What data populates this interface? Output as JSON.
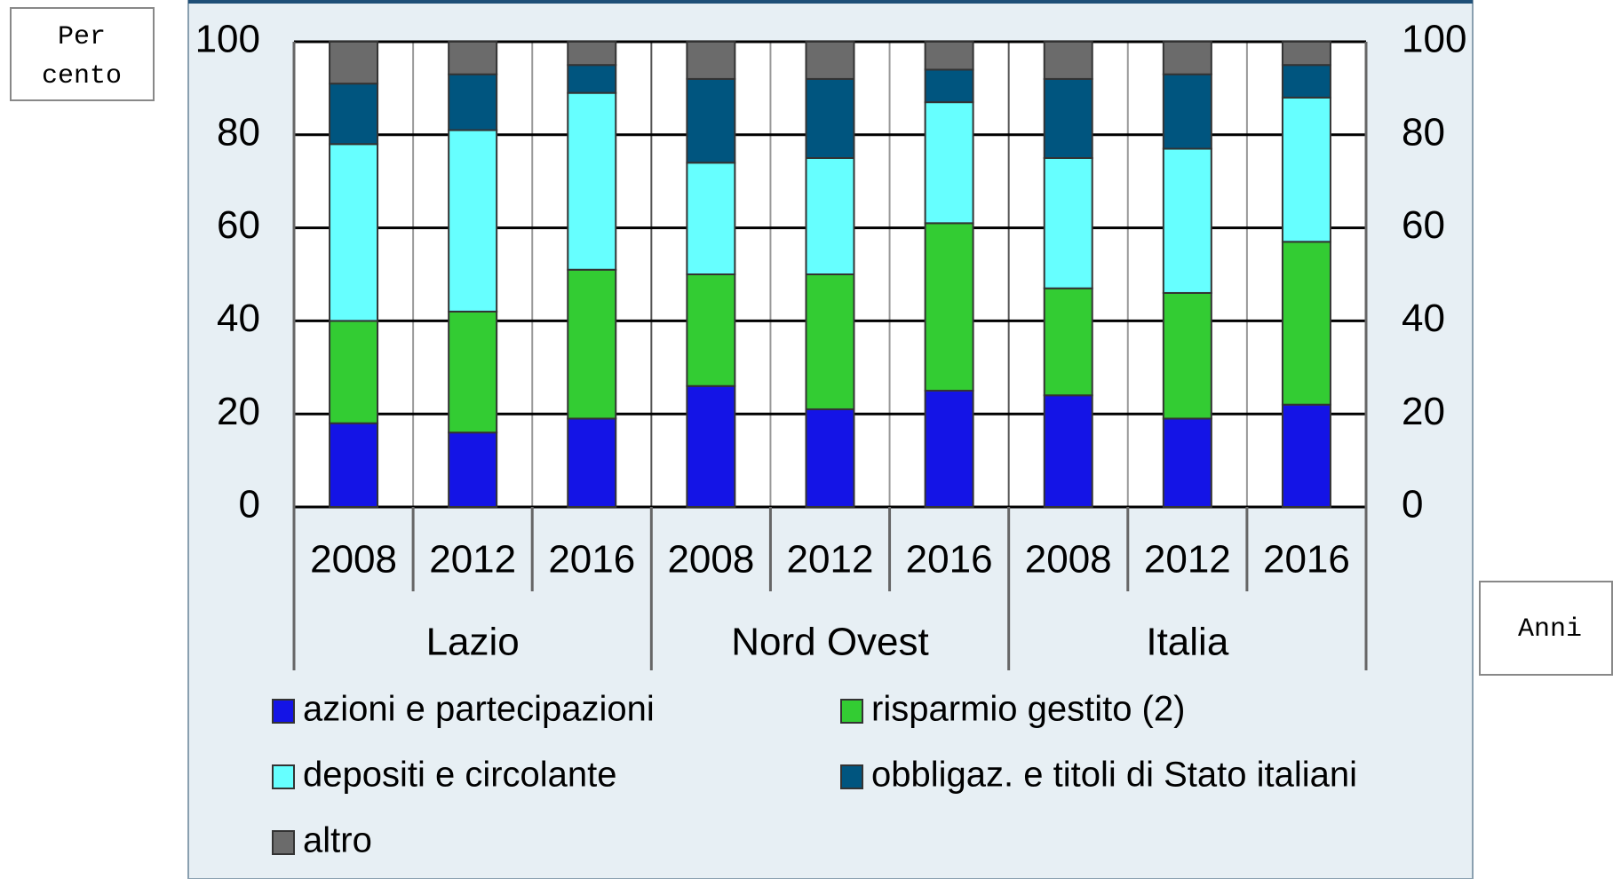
{
  "chart_data": {
    "type": "stacked_bar",
    "y_axis_label": "Per cento",
    "x_axis_label": "Anni",
    "categories": [
      "2008",
      "2012",
      "2016",
      "2008",
      "2012",
      "2016",
      "2008",
      "2012",
      "2016"
    ],
    "groups": [
      "Lazio",
      "Nord Ovest",
      "Italia"
    ],
    "series": [
      {
        "name": "azioni e partecipazioni",
        "color": "#1414e6",
        "values": [
          18,
          16,
          19,
          26,
          21,
          25,
          24,
          19,
          22
        ]
      },
      {
        "name": "risparmio gestito (2)",
        "color": "#33cc33",
        "values": [
          22,
          26,
          32,
          24,
          29,
          36,
          23,
          27,
          35
        ]
      },
      {
        "name": "depositi e circolante",
        "color": "#66ffff",
        "values": [
          38,
          39,
          38,
          24,
          25,
          26,
          28,
          31,
          31
        ]
      },
      {
        "name": "obbligaz. e titoli di Stato italiani",
        "color": "#00557f",
        "values": [
          13,
          12,
          6,
          18,
          17,
          7,
          17,
          16,
          7
        ]
      },
      {
        "name": "altro",
        "color": "#6b6b6b",
        "values": [
          9,
          7,
          5,
          8,
          8,
          6,
          8,
          7,
          5
        ]
      }
    ],
    "ylim": [
      0,
      100
    ],
    "yticks": [
      0,
      20,
      40,
      60,
      80,
      100
    ],
    "y2lim": [
      0,
      100
    ],
    "y2ticks": [
      0,
      20,
      40,
      60,
      80,
      100
    ],
    "grid": true
  }
}
